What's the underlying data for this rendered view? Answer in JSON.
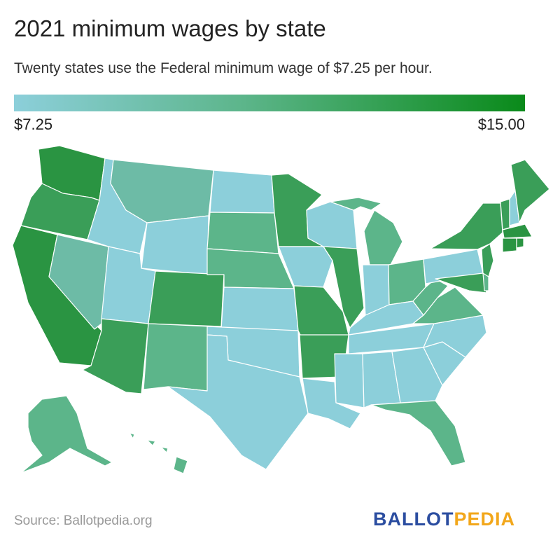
{
  "title": "2021 minimum wages by state",
  "subtitle": "Twenty states use the Federal minimum wage of $7.25 per hour.",
  "legend": {
    "min_label": "$7.25",
    "max_label": "$15.00"
  },
  "source": "Source: Ballotpedia.org",
  "logo": {
    "ballot": "BALLOT",
    "pedia": "PEDIA"
  },
  "colors": {
    "federal": "#8ccfda",
    "low": "#6dbba6",
    "mid": "#5cb58a",
    "mid_high": "#4aa86e",
    "high": "#3a9e58",
    "top": "#2a9442",
    "max": "#0a8a1a"
  }
}
